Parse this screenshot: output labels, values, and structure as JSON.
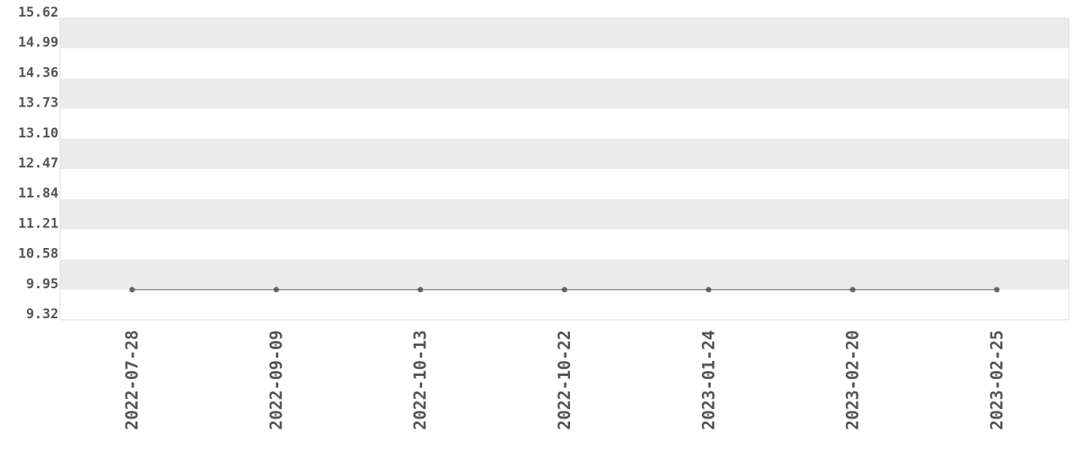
{
  "chart_data": {
    "type": "line",
    "categories": [
      "2022-07-28",
      "2022-09-09",
      "2022-10-13",
      "2022-10-22",
      "2023-01-24",
      "2023-02-20",
      "2023-02-25"
    ],
    "series": [
      {
        "values": [
          9.95,
          9.95,
          9.95,
          9.95,
          9.95,
          9.95,
          9.95
        ]
      }
    ],
    "yticks": [
      "9.32",
      "9.95",
      "10.58",
      "11.21",
      "11.84",
      "12.47",
      "13.10",
      "13.73",
      "14.36",
      "14.99",
      "15.62"
    ],
    "ylim": [
      9.32,
      15.62
    ],
    "title": "",
    "xlabel": "",
    "ylabel": "",
    "grid": "alternating horizontal bands",
    "legend": "none",
    "colors": {
      "band": "#ebebeb",
      "line": "#666666",
      "marker": "#666666",
      "text": "#555555",
      "border": "#dddddd"
    }
  }
}
